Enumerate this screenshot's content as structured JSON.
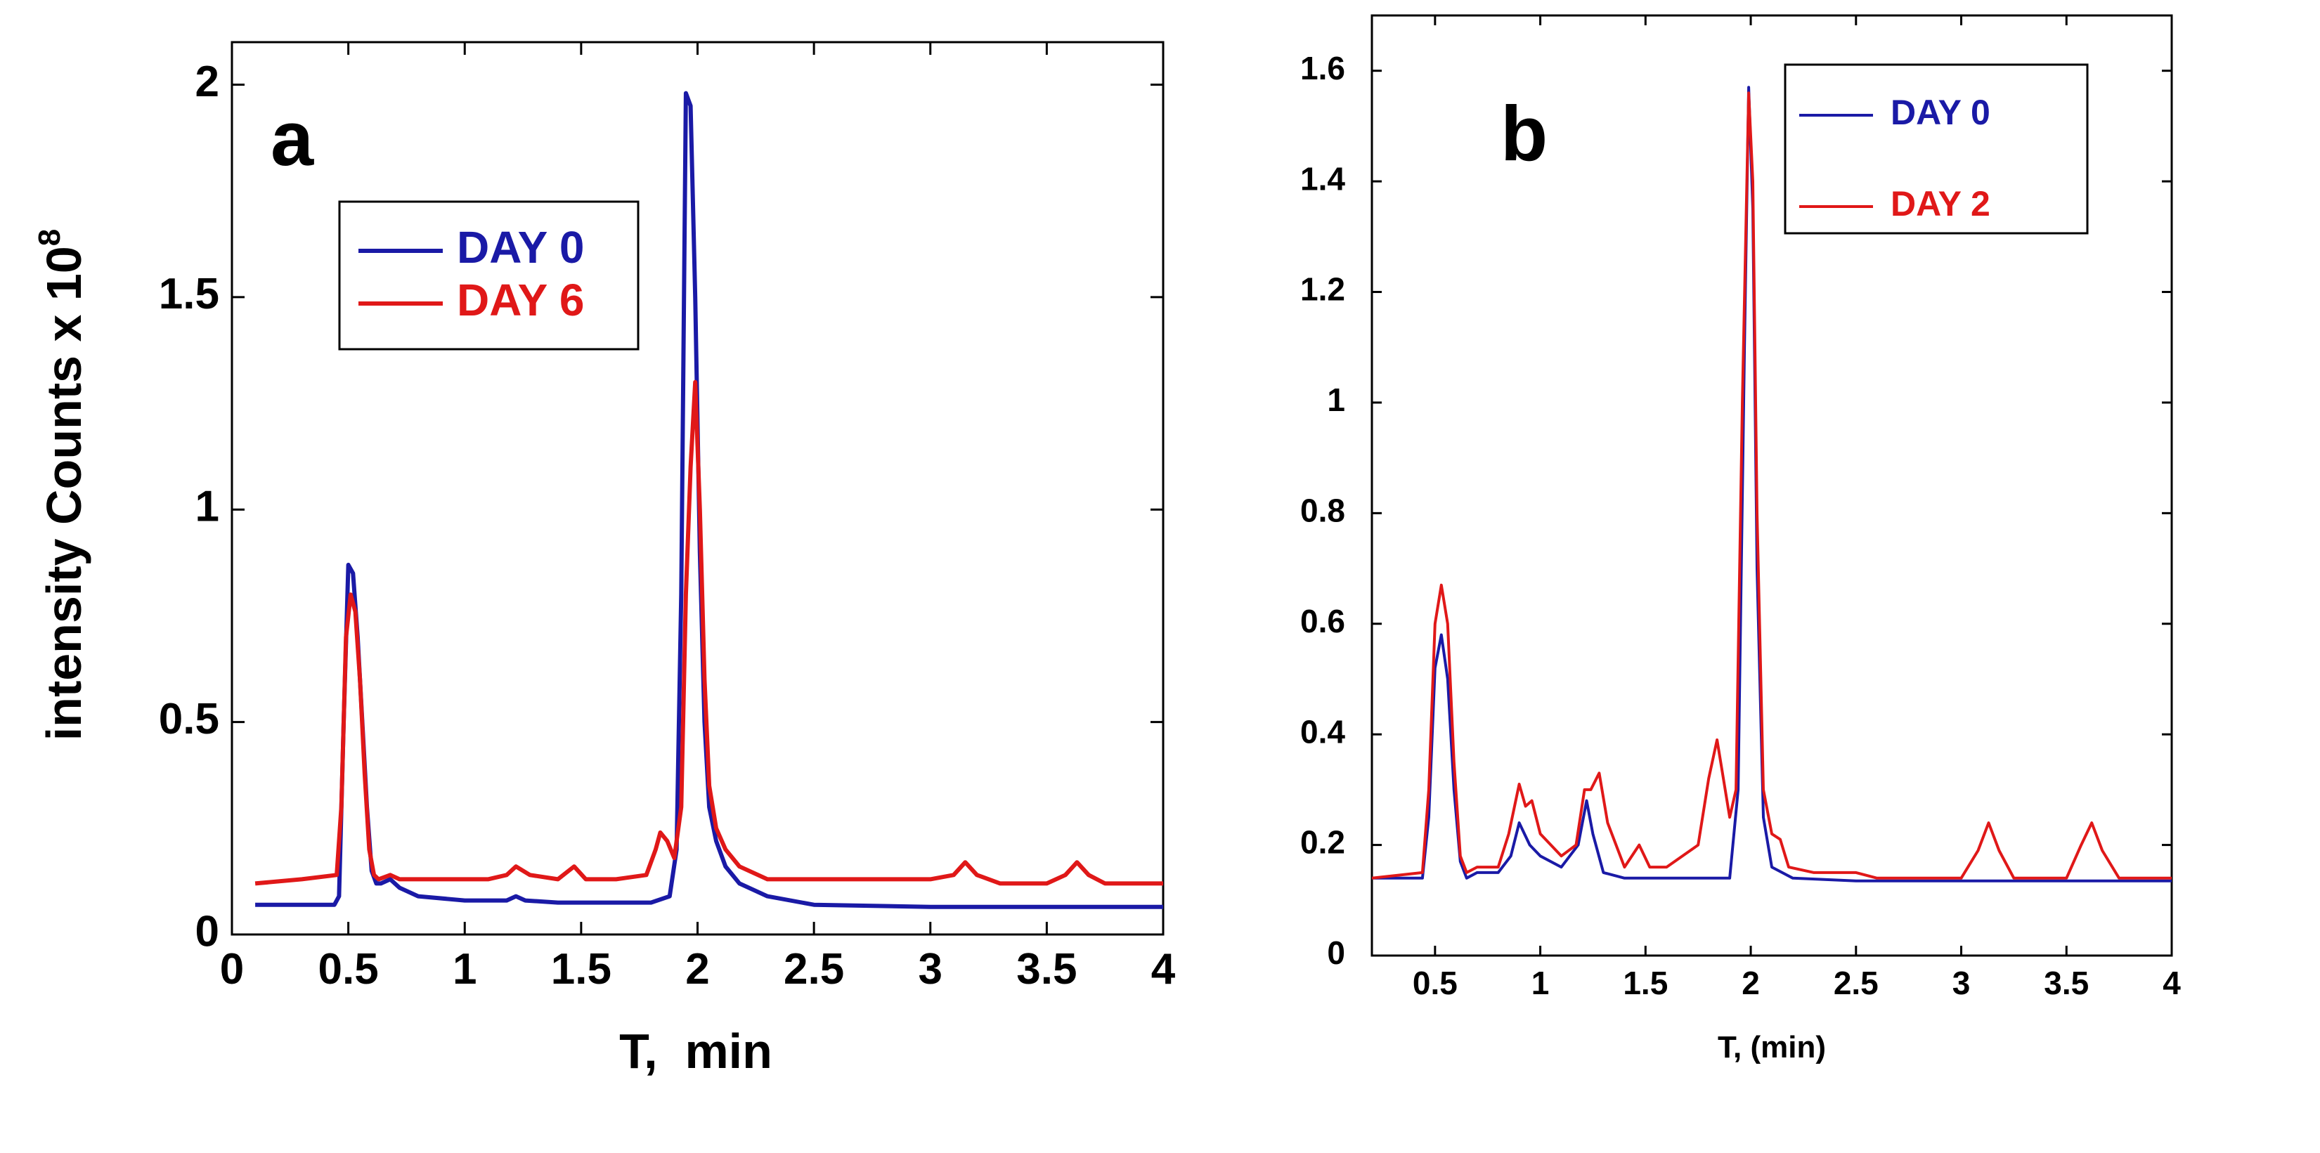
{
  "chart_data": [
    {
      "panel": "a",
      "type": "line",
      "title": "",
      "panel_letter": "a",
      "xlabel": "T,  min",
      "ylabel": "intensity Counts x 10",
      "ylabel_superscript": "8",
      "xlim": [
        0,
        4
      ],
      "ylim": [
        0,
        2.1
      ],
      "xticks": [
        0,
        0.5,
        1,
        1.5,
        2,
        2.5,
        3,
        3.5,
        4
      ],
      "xtick_labels": [
        "0",
        "0.5",
        "1",
        "1.5",
        "2",
        "2.5",
        "3",
        "3.5",
        "4"
      ],
      "yticks": [
        0,
        0.5,
        1,
        1.5,
        2
      ],
      "ytick_labels": [
        "0",
        "0.5",
        "1",
        "1.5",
        "2"
      ],
      "grid": false,
      "legend_position": "upper-left",
      "series": [
        {
          "name": "DAY 0",
          "color": "#1a1aa6",
          "x": [
            0.1,
            0.44,
            0.46,
            0.48,
            0.5,
            0.52,
            0.54,
            0.56,
            0.58,
            0.6,
            0.62,
            0.64,
            0.68,
            0.72,
            0.8,
            1.0,
            1.18,
            1.22,
            1.26,
            1.4,
            1.6,
            1.8,
            1.88,
            1.91,
            1.93,
            1.95,
            1.97,
            1.99,
            2.01,
            2.03,
            2.05,
            2.08,
            2.12,
            2.18,
            2.3,
            2.5,
            3.0,
            3.5,
            4.0
          ],
          "y": [
            0.07,
            0.07,
            0.09,
            0.5,
            0.87,
            0.85,
            0.7,
            0.5,
            0.3,
            0.15,
            0.12,
            0.12,
            0.13,
            0.11,
            0.09,
            0.08,
            0.08,
            0.09,
            0.08,
            0.075,
            0.075,
            0.075,
            0.09,
            0.2,
            0.8,
            1.98,
            1.95,
            1.5,
            0.9,
            0.5,
            0.3,
            0.22,
            0.16,
            0.12,
            0.09,
            0.07,
            0.065,
            0.065,
            0.065
          ]
        },
        {
          "name": "DAY 6",
          "color": "#e01818",
          "x": [
            0.1,
            0.3,
            0.45,
            0.47,
            0.49,
            0.51,
            0.53,
            0.55,
            0.57,
            0.59,
            0.61,
            0.63,
            0.68,
            0.72,
            0.8,
            1.1,
            1.18,
            1.22,
            1.28,
            1.4,
            1.47,
            1.52,
            1.65,
            1.78,
            1.82,
            1.84,
            1.87,
            1.9,
            1.93,
            1.95,
            1.97,
            1.99,
            2.01,
            2.03,
            2.05,
            2.08,
            2.12,
            2.18,
            2.3,
            2.5,
            3.0,
            3.1,
            3.15,
            3.2,
            3.3,
            3.5,
            3.58,
            3.63,
            3.68,
            3.75,
            4.0
          ],
          "y": [
            0.12,
            0.13,
            0.14,
            0.3,
            0.7,
            0.8,
            0.76,
            0.6,
            0.38,
            0.2,
            0.14,
            0.13,
            0.14,
            0.13,
            0.13,
            0.13,
            0.14,
            0.16,
            0.14,
            0.13,
            0.16,
            0.13,
            0.13,
            0.14,
            0.2,
            0.24,
            0.22,
            0.18,
            0.3,
            0.8,
            1.1,
            1.3,
            1.0,
            0.6,
            0.35,
            0.25,
            0.2,
            0.16,
            0.13,
            0.13,
            0.13,
            0.14,
            0.17,
            0.14,
            0.12,
            0.12,
            0.14,
            0.17,
            0.14,
            0.12,
            0.12
          ]
        }
      ]
    },
    {
      "panel": "b",
      "type": "line",
      "title": "",
      "panel_letter": "b",
      "xlabel": "T, (min)",
      "ylabel": "",
      "xlim": [
        0.2,
        4
      ],
      "ylim": [
        0,
        1.7
      ],
      "xticks": [
        0.5,
        1,
        1.5,
        2,
        2.5,
        3,
        3.5,
        4
      ],
      "xtick_labels": [
        "0.5",
        "1",
        "1.5",
        "2",
        "2.5",
        "3",
        "3.5",
        "4"
      ],
      "yticks": [
        0,
        0.2,
        0.4,
        0.6,
        0.8,
        1,
        1.2,
        1.4,
        1.6
      ],
      "ytick_labels": [
        "0",
        "0.2",
        "0.4",
        "0.6",
        "0.8",
        "1",
        "1.2",
        "1.4",
        "1.6"
      ],
      "grid": false,
      "legend_position": "top-right",
      "series": [
        {
          "name": "DAY 0",
          "color": "#1a1aa6",
          "x": [
            0.2,
            0.44,
            0.47,
            0.5,
            0.53,
            0.56,
            0.59,
            0.62,
            0.65,
            0.7,
            0.8,
            0.86,
            0.9,
            0.95,
            1.0,
            1.1,
            1.18,
            1.22,
            1.25,
            1.3,
            1.4,
            1.6,
            1.8,
            1.9,
            1.94,
            1.97,
            1.99,
            2.01,
            2.03,
            2.06,
            2.1,
            2.2,
            2.5,
            3.0,
            4.0
          ],
          "y": [
            0.14,
            0.14,
            0.25,
            0.52,
            0.58,
            0.5,
            0.3,
            0.17,
            0.14,
            0.15,
            0.15,
            0.18,
            0.24,
            0.2,
            0.18,
            0.16,
            0.2,
            0.28,
            0.22,
            0.15,
            0.14,
            0.14,
            0.14,
            0.14,
            0.3,
            1.1,
            1.57,
            1.35,
            0.7,
            0.25,
            0.16,
            0.14,
            0.135,
            0.135,
            0.135
          ]
        },
        {
          "name": "DAY 2",
          "color": "#e01818",
          "x": [
            0.2,
            0.44,
            0.47,
            0.5,
            0.53,
            0.56,
            0.59,
            0.62,
            0.65,
            0.7,
            0.8,
            0.85,
            0.9,
            0.93,
            0.96,
            1.0,
            1.1,
            1.17,
            1.21,
            1.24,
            1.28,
            1.32,
            1.4,
            1.47,
            1.52,
            1.6,
            1.75,
            1.8,
            1.84,
            1.87,
            1.9,
            1.93,
            1.96,
            1.99,
            2.01,
            2.03,
            2.06,
            2.1,
            2.14,
            2.18,
            2.3,
            2.5,
            2.6,
            3.0,
            3.08,
            3.13,
            3.18,
            3.25,
            3.5,
            3.57,
            3.62,
            3.67,
            3.75,
            4.0
          ],
          "y": [
            0.14,
            0.15,
            0.3,
            0.6,
            0.67,
            0.6,
            0.35,
            0.18,
            0.15,
            0.16,
            0.16,
            0.22,
            0.31,
            0.27,
            0.28,
            0.22,
            0.18,
            0.2,
            0.3,
            0.3,
            0.33,
            0.24,
            0.16,
            0.2,
            0.16,
            0.16,
            0.2,
            0.32,
            0.39,
            0.32,
            0.25,
            0.3,
            1.0,
            1.56,
            1.4,
            0.8,
            0.3,
            0.22,
            0.21,
            0.16,
            0.15,
            0.15,
            0.14,
            0.14,
            0.19,
            0.24,
            0.19,
            0.14,
            0.14,
            0.2,
            0.24,
            0.19,
            0.14,
            0.14
          ]
        }
      ]
    }
  ]
}
